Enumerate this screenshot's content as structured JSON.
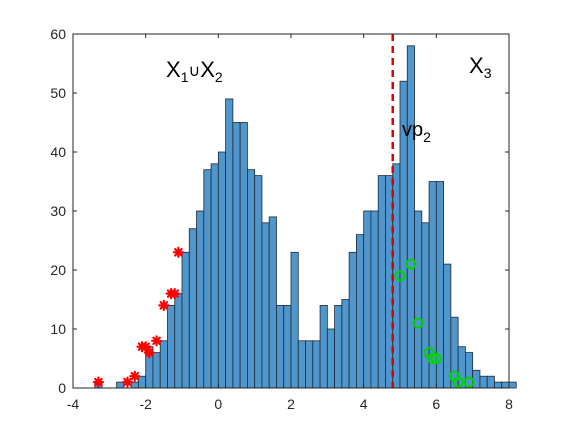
{
  "chart_data": {
    "type": "bar",
    "title": "",
    "xlabel": "",
    "ylabel": "",
    "xlim": [
      -4,
      8
    ],
    "ylim": [
      0,
      60
    ],
    "grid": false,
    "x_ticks": [
      "-4",
      "-2",
      "0",
      "2",
      "4",
      "6",
      "8"
    ],
    "y_ticks": [
      "0",
      "10",
      "20",
      "30",
      "40",
      "50",
      "60"
    ],
    "histogram": {
      "bin_width": 0.2,
      "first_bin_left": -3.4,
      "counts": [
        1,
        0,
        0,
        1,
        0,
        1,
        2,
        7,
        6,
        8,
        14,
        16,
        23,
        27,
        30,
        37,
        38,
        40,
        49,
        45,
        45,
        37,
        36,
        28,
        29,
        14,
        14,
        23,
        8,
        8,
        8,
        14,
        10,
        14,
        15,
        23,
        26,
        30,
        30,
        36,
        36,
        38,
        52,
        58,
        30,
        28,
        35,
        35,
        21,
        12,
        7,
        6,
        3,
        2,
        2,
        1,
        1,
        1
      ]
    },
    "overlays": {
      "red_stars": [
        [
          -3.3,
          1
        ],
        [
          -2.5,
          1
        ],
        [
          -2.3,
          2
        ],
        [
          -2.1,
          7
        ],
        [
          -2.0,
          7
        ],
        [
          -1.9,
          6
        ],
        [
          -1.7,
          8
        ],
        [
          -1.5,
          14
        ],
        [
          -1.3,
          16
        ],
        [
          -1.2,
          16
        ],
        [
          -1.1,
          23
        ]
      ],
      "green_circles": [
        [
          5.0,
          19
        ],
        [
          5.3,
          21
        ],
        [
          5.5,
          11
        ],
        [
          5.8,
          6
        ],
        [
          5.9,
          5
        ],
        [
          6.0,
          5
        ],
        [
          6.5,
          2
        ],
        [
          6.6,
          1
        ],
        [
          6.9,
          1
        ]
      ]
    },
    "threshold_line": {
      "x": 4.8
    },
    "annotations": {
      "left_cluster": {
        "main": "X",
        "sub1": "1",
        "union": "∪",
        "main2": "X",
        "sub2": "2"
      },
      "right_cluster": {
        "main": "X",
        "sub": "3"
      },
      "threshold_label": {
        "main": "vp",
        "sub": "2"
      }
    },
    "colors": {
      "bar_fill": "#4F96CC",
      "bar_stroke": "#1F2A36",
      "star": "#FF0000",
      "circle": "#00D400",
      "threshold": "#DD0000",
      "axis": "#262626"
    }
  }
}
